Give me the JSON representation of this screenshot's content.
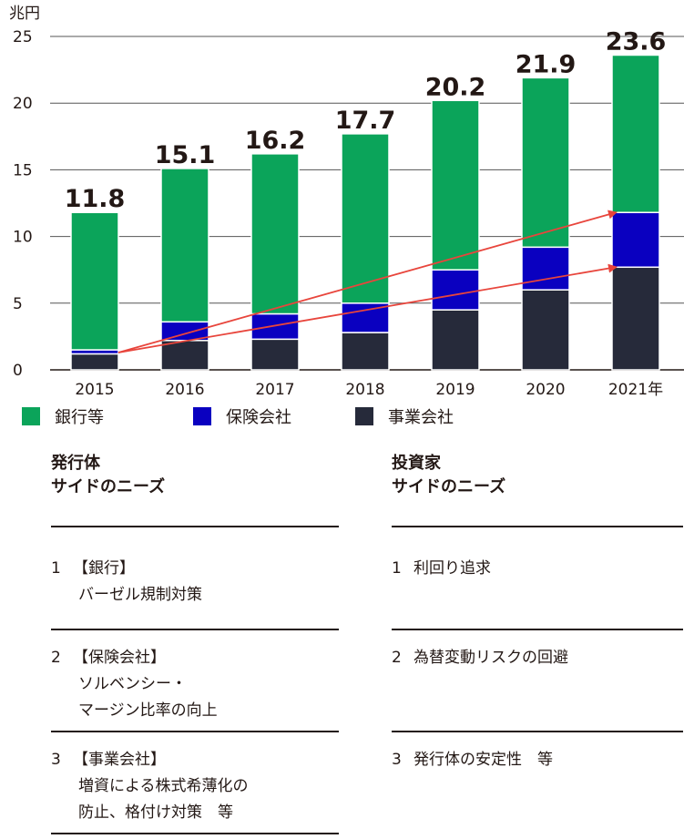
{
  "chart_data": {
    "type": "bar",
    "stacked": true,
    "unit_label": "兆円",
    "categories": [
      "2015",
      "2016",
      "2017",
      "2018",
      "2019",
      "2020",
      "2021年"
    ],
    "series": [
      {
        "name": "事業会社",
        "color": "#262a3a",
        "values": [
          1.2,
          2.2,
          2.3,
          2.8,
          4.5,
          6.0,
          7.7
        ]
      },
      {
        "name": "保険会社",
        "color": "#0a00c0",
        "values": [
          0.3,
          1.4,
          1.9,
          2.2,
          3.0,
          3.2,
          4.1
        ]
      },
      {
        "name": "銀行等",
        "color": "#0ba45a",
        "values": [
          10.3,
          11.5,
          12.0,
          12.7,
          12.7,
          12.7,
          11.8
        ]
      }
    ],
    "totals": [
      "11.8",
      "15.1",
      "16.2",
      "17.7",
      "20.2",
      "21.9",
      "23.6"
    ],
    "ylim": [
      0,
      25
    ],
    "yticks": [
      "0",
      "5",
      "10",
      "15",
      "20",
      "25"
    ],
    "grid": true,
    "legend_position": "bottom",
    "trend_arrows": [
      {
        "from": [
          "2015",
          1.3
        ],
        "to": [
          "2021年",
          7.7
        ]
      },
      {
        "from": [
          "2015",
          1.3
        ],
        "to": [
          "2021年",
          11.8
        ]
      }
    ],
    "arrow_color": "#e8453c"
  },
  "legend": [
    {
      "label": "銀行等",
      "color": "#0ba45a"
    },
    {
      "label": "保険会社",
      "color": "#0a00c0"
    },
    {
      "label": "事業会社",
      "color": "#262a3a"
    }
  ],
  "issuer": {
    "title_line1": "発行体",
    "title_line2": "サイドのニーズ",
    "items": [
      {
        "num": "1",
        "line1": "【銀行】",
        "line2": "バーゼル規制対策",
        "line3": ""
      },
      {
        "num": "2",
        "line1": "【保険会社】",
        "line2": "ソルベンシー・",
        "line3": "マージン比率の向上"
      },
      {
        "num": "3",
        "line1": "【事業会社】",
        "line2": "増資による株式希薄化の",
        "line3": "防止、格付け対策　等"
      }
    ]
  },
  "investor": {
    "title_line1": "投資家",
    "title_line2": "サイドのニーズ",
    "items": [
      {
        "num": "1",
        "line1": "利回り追求"
      },
      {
        "num": "2",
        "line1": "為替変動リスクの回避"
      },
      {
        "num": "3",
        "line1": "発行体の安定性　等"
      }
    ]
  }
}
